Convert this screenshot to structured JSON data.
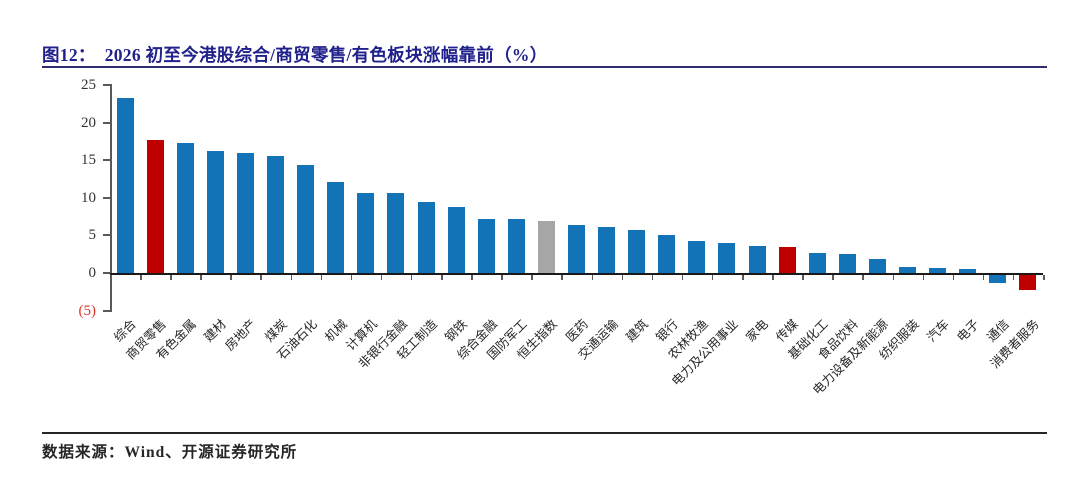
{
  "figure": {
    "label": "图12：",
    "title": "2026 初至今港股综合/商贸零售/有色板块涨幅靠前（%）"
  },
  "chart_data": {
    "type": "bar",
    "title": "2026 初至今港股综合/商贸零售/有色板块涨幅靠前（%）",
    "xlabel": "",
    "ylabel": "",
    "ylim": [
      -5,
      25
    ],
    "grid": false,
    "legend": null,
    "y_tick_values": [
      25,
      20,
      15,
      10,
      5,
      0,
      -5
    ],
    "y_tick_labels": [
      "25",
      "20",
      "15",
      "10",
      "5",
      "0",
      "(5)"
    ],
    "categories": [
      "综合",
      "商贸零售",
      "有色金属",
      "建材",
      "房地产",
      "煤炭",
      "石油石化",
      "机械",
      "计算机",
      "非银行金融",
      "轻工制造",
      "钢铁",
      "综合金融",
      "国防军工",
      "恒生指数",
      "医药",
      "交通运输",
      "建筑",
      "银行",
      "农林牧渔",
      "电力及公用事业",
      "家电",
      "传媒",
      "基础化工",
      "食品饮料",
      "电力设备及新能源",
      "纺织服装",
      "汽车",
      "电子",
      "通信",
      "消费者服务"
    ],
    "values": [
      23.3,
      17.7,
      17.3,
      16.2,
      15.9,
      15.6,
      14.4,
      12.1,
      10.7,
      10.6,
      9.4,
      8.8,
      7.2,
      7.2,
      6.9,
      6.4,
      6.1,
      5.7,
      5.1,
      4.2,
      4.0,
      3.6,
      3.4,
      2.7,
      2.5,
      1.8,
      0.8,
      0.6,
      0.5,
      -1.0,
      -2.0
    ],
    "bar_colors": [
      "#1274B6",
      "#C00000",
      "#1274B6",
      "#1274B6",
      "#1274B6",
      "#1274B6",
      "#1274B6",
      "#1274B6",
      "#1274B6",
      "#1274B6",
      "#1274B6",
      "#1274B6",
      "#1274B6",
      "#1274B6",
      "#A6A6A6",
      "#1274B6",
      "#1274B6",
      "#1274B6",
      "#1274B6",
      "#1274B6",
      "#1274B6",
      "#1274B6",
      "#C00000",
      "#1274B6",
      "#1274B6",
      "#1274B6",
      "#1274B6",
      "#1274B6",
      "#1274B6",
      "#1274B6",
      "#C00000"
    ]
  },
  "footer": {
    "source": "数据来源：Wind、开源证券研究所"
  },
  "colors": {
    "bar_blue": "#1274B6",
    "bar_red": "#C00000",
    "bar_gray": "#A6A6A6",
    "title_navy": "#21218C",
    "divider_navy": "#2E2E6E",
    "negative_label_red": "#DB3327",
    "axis_gray": "#595959",
    "axis_black": "#1A1A1A",
    "tick_text": "#333333",
    "text_dark": "#262626"
  }
}
